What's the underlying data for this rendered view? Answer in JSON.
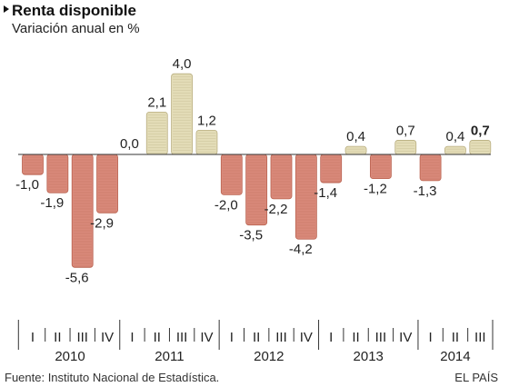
{
  "chart_data": {
    "type": "bar",
    "title": "Renta disponible",
    "subtitle": "Variación anual en %",
    "categories": [
      "I",
      "II",
      "III",
      "IV",
      "I",
      "II",
      "III",
      "IV",
      "I",
      "II",
      "III",
      "IV",
      "I",
      "II",
      "III",
      "IV",
      "I",
      "II",
      "III"
    ],
    "years": [
      "2010",
      "2011",
      "2012",
      "2013",
      "2014"
    ],
    "values": [
      -1.0,
      -1.9,
      -5.6,
      -2.9,
      0.0,
      2.1,
      4.0,
      1.2,
      -2.0,
      -3.5,
      -2.2,
      -4.2,
      -1.4,
      0.4,
      -1.2,
      0.7,
      -1.3,
      0.4,
      0.7
    ],
    "value_labels": [
      "-1,0",
      "-1,9",
      "-5,6",
      "-2,9",
      "0,0",
      "2,1",
      "4,0",
      "1,2",
      "-2,0",
      "-3,5",
      "-2,2",
      "-4,2",
      "-1,4",
      "0,4",
      "-1,2",
      "0,7",
      "-1,3",
      "0,4",
      "0,7"
    ],
    "highlight_index": 18,
    "colors": {
      "negative": "#d9897a",
      "negative_dark": "#b9624f",
      "positive": "#e3dcb7",
      "positive_dark": "#b9ae80",
      "axis": "#333333"
    }
  },
  "footer": {
    "source": "Fuente: Instituto Nacional de Estadística.",
    "credit": "EL PAÍS"
  }
}
